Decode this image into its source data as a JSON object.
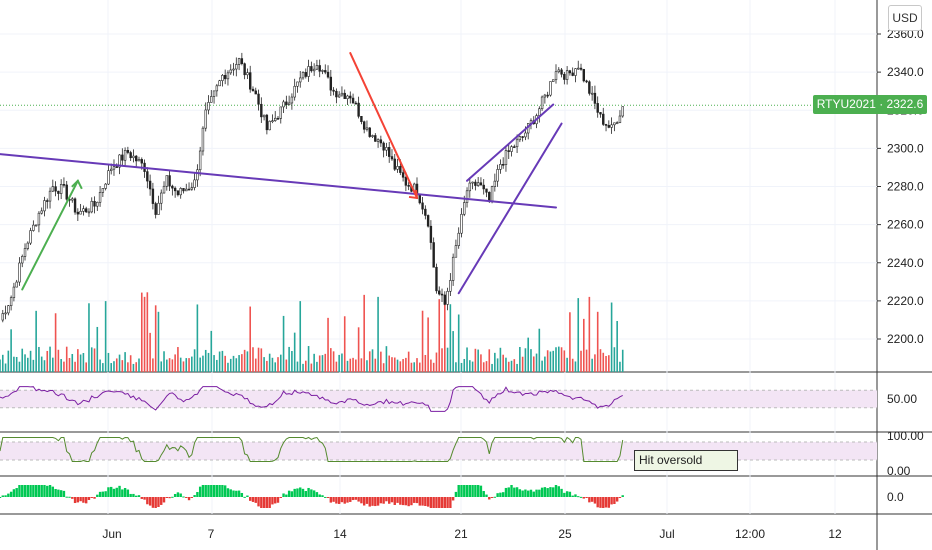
{
  "chart_data": [
    {
      "type": "candlestick",
      "symbol": "RTYU2021",
      "last_price": "2322.6",
      "currency": "USD",
      "ylim": [
        2185,
        2365
      ],
      "y_ticks": [
        "2360.0",
        "2340.0",
        "2320.0",
        "2300.0",
        "2280.0",
        "2260.0",
        "2240.0",
        "2220.0",
        "2200.0"
      ],
      "x_ticks": [
        "Jun",
        "7",
        "14",
        "21",
        "25",
        "Jul",
        "12:00",
        "12"
      ],
      "anchors": [
        {
          "t": 0,
          "p": 2210
        },
        {
          "t": 4,
          "p": 2222
        },
        {
          "t": 9,
          "p": 2248
        },
        {
          "t": 14,
          "p": 2266
        },
        {
          "t": 19,
          "p": 2280
        },
        {
          "t": 23,
          "p": 2278
        },
        {
          "t": 28,
          "p": 2266
        },
        {
          "t": 34,
          "p": 2270
        },
        {
          "t": 40,
          "p": 2290
        },
        {
          "t": 46,
          "p": 2298
        },
        {
          "t": 52,
          "p": 2290
        },
        {
          "t": 56,
          "p": 2268
        },
        {
          "t": 60,
          "p": 2283
        },
        {
          "t": 64,
          "p": 2276
        },
        {
          "t": 70,
          "p": 2282
        },
        {
          "t": 74,
          "p": 2318
        },
        {
          "t": 80,
          "p": 2338
        },
        {
          "t": 86,
          "p": 2346
        },
        {
          "t": 92,
          "p": 2328
        },
        {
          "t": 96,
          "p": 2310
        },
        {
          "t": 102,
          "p": 2322
        },
        {
          "t": 108,
          "p": 2336
        },
        {
          "t": 114,
          "p": 2346
        },
        {
          "t": 120,
          "p": 2330
        },
        {
          "t": 126,
          "p": 2328
        },
        {
          "t": 132,
          "p": 2310
        },
        {
          "t": 138,
          "p": 2302
        },
        {
          "t": 142,
          "p": 2290
        },
        {
          "t": 146,
          "p": 2282
        },
        {
          "t": 150,
          "p": 2278
        },
        {
          "t": 154,
          "p": 2262
        },
        {
          "t": 157,
          "p": 2226
        },
        {
          "t": 160,
          "p": 2218
        },
        {
          "t": 164,
          "p": 2248
        },
        {
          "t": 168,
          "p": 2278
        },
        {
          "t": 172,
          "p": 2282
        },
        {
          "t": 176,
          "p": 2272
        },
        {
          "t": 180,
          "p": 2292
        },
        {
          "t": 184,
          "p": 2300
        },
        {
          "t": 188,
          "p": 2306
        },
        {
          "t": 193,
          "p": 2318
        },
        {
          "t": 197,
          "p": 2330
        },
        {
          "t": 200,
          "p": 2342
        },
        {
          "t": 204,
          "p": 2338
        },
        {
          "t": 208,
          "p": 2344
        },
        {
          "t": 212,
          "p": 2330
        },
        {
          "t": 216,
          "p": 2316
        },
        {
          "t": 220,
          "p": 2310
        },
        {
          "t": 224,
          "p": 2322
        }
      ],
      "trendlines": [
        {
          "color": "#673ab7",
          "from": {
            "t": 0,
            "p": 2297
          },
          "to": {
            "t": 200,
            "p": 2269
          }
        },
        {
          "color": "#673ab7",
          "from": {
            "t": 168,
            "p": 2283
          },
          "to": {
            "t": 199,
            "p": 2323
          }
        },
        {
          "color": "#673ab7",
          "from": {
            "t": 165,
            "p": 2224
          },
          "to": {
            "t": 202,
            "p": 2313
          }
        },
        {
          "color": "#4caf50",
          "from": {
            "t": 8,
            "p": 2226
          },
          "to": {
            "t": 28,
            "p": 2283
          }
        },
        {
          "color": "#f44336",
          "from": {
            "t": 126,
            "p": 2350
          },
          "to": {
            "t": 150,
            "p": 2274
          }
        }
      ],
      "colors": {
        "up": "#26a69a",
        "down": "#ef5350",
        "volume_up": "#26a69a",
        "volume_down": "#ef5350"
      }
    },
    {
      "type": "line",
      "name": "",
      "ylim": [
        0,
        100
      ],
      "y_ticks": [
        "50.00"
      ],
      "band": [
        30,
        70
      ],
      "color": "#7b1fa2"
    },
    {
      "type": "line",
      "name": "",
      "ylim": [
        0,
        100
      ],
      "y_ticks": [
        "100.00",
        "0.00"
      ],
      "band": [
        20,
        80
      ],
      "color": "#558b2f",
      "annotation": "Hit oversold"
    },
    {
      "type": "histogram",
      "name": "",
      "y_ticks": [
        "0.0"
      ],
      "colors": {
        "pos": "#00c853",
        "neg": "#e53935"
      }
    }
  ],
  "ui": {
    "currency_button": "USD",
    "price_tag": "RTYU2021 · 2322.6"
  }
}
